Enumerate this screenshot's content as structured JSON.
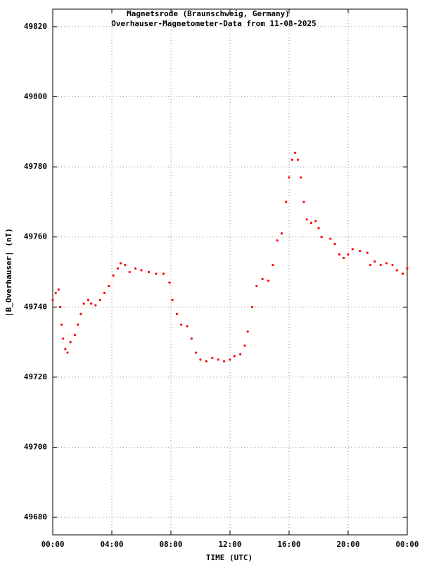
{
  "chart_data": {
    "type": "scatter",
    "title": "Magnetsrode (Braunschweig, Germany)",
    "subtitle": "Overhauser-Magnetometer-Data from 11-08-2025",
    "x_label": "TIME (UTC)",
    "y_label": "|B_Overhauser| (nT)",
    "xlim": [
      0,
      24
    ],
    "xticks": [
      {
        "value": 0,
        "label": "00:00"
      },
      {
        "value": 4,
        "label": "04:00"
      },
      {
        "value": 8,
        "label": "08:00"
      },
      {
        "value": 12,
        "label": "12:00"
      },
      {
        "value": 16,
        "label": "16:00"
      },
      {
        "value": 20,
        "label": "20:00"
      },
      {
        "value": 24,
        "label": "00:00"
      }
    ],
    "ylim": [
      49675,
      49825
    ],
    "yticks": [
      49680,
      49700,
      49720,
      49740,
      49760,
      49780,
      49800,
      49820
    ],
    "grid": true,
    "color": "#ff0000",
    "x": [
      0.0,
      0.2,
      0.4,
      0.5,
      0.6,
      0.7,
      0.85,
      1.0,
      1.2,
      1.5,
      1.7,
      1.9,
      2.1,
      2.4,
      2.6,
      2.9,
      3.2,
      3.5,
      3.8,
      4.1,
      4.4,
      4.6,
      4.9,
      5.2,
      5.6,
      6.0,
      6.5,
      7.0,
      7.5,
      7.9,
      8.1,
      8.4,
      8.7,
      9.1,
      9.4,
      9.7,
      10.0,
      10.4,
      10.8,
      11.2,
      11.6,
      12.0,
      12.3,
      12.7,
      13.0,
      13.2,
      13.5,
      13.8,
      14.2,
      14.6,
      14.9,
      15.2,
      15.5,
      15.8,
      16.0,
      16.2,
      16.4,
      16.6,
      16.8,
      17.0,
      17.2,
      17.5,
      17.8,
      18.0,
      18.2,
      18.8,
      19.1,
      19.4,
      19.7,
      20.0,
      20.3,
      20.8,
      21.3,
      21.5,
      21.8,
      22.2,
      22.6,
      23.0,
      23.3,
      23.7,
      24.0
    ],
    "values": [
      49742,
      49744,
      49745,
      49740,
      49735,
      49731,
      49728,
      49727,
      49730,
      49732,
      49735,
      49738,
      49741,
      49742,
      49741,
      49740.5,
      49742,
      49744,
      49746,
      49749,
      49751,
      49752.5,
      49752,
      49750,
      49751,
      49750.5,
      49750,
      49749.5,
      49749.5,
      49747,
      49742,
      49738,
      49735,
      49734.5,
      49731,
      49727,
      49725,
      49724.5,
      49725.5,
      49725,
      49724.5,
      49725,
      49726,
      49726.5,
      49729,
      49733,
      49740,
      49746,
      49748,
      49747.5,
      49752,
      49759,
      49761,
      49770,
      49777,
      49782,
      49784,
      49782,
      49777,
      49770,
      49765,
      49764,
      49764.5,
      49762.5,
      49760,
      49759.5,
      49758,
      49755,
      49754,
      49755,
      49756.5,
      49756,
      49755.5,
      49752,
      49753,
      49752,
      49752.5,
      49752,
      49750.5,
      49749.5,
      49751
    ]
  }
}
